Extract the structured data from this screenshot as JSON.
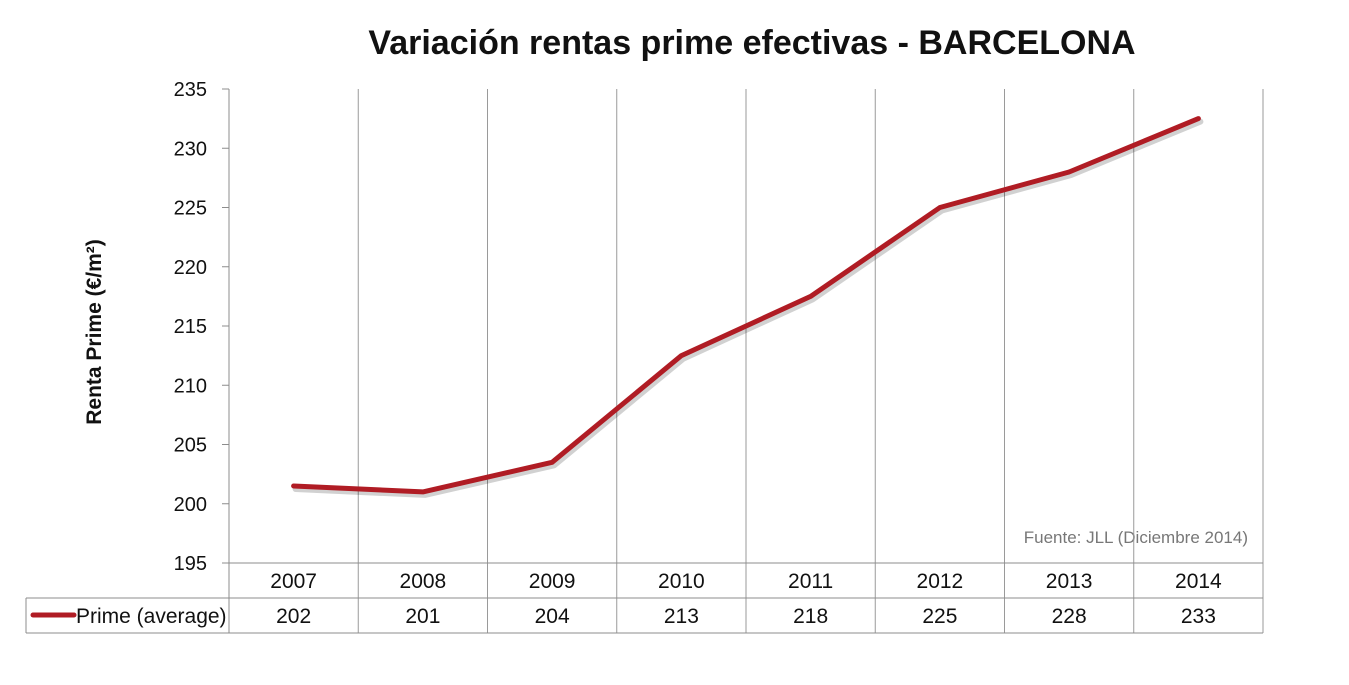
{
  "chart_data": {
    "type": "line",
    "title": "Variación rentas prime efectivas - BARCELONA",
    "ylabel": "Renta Prime (€/m²)",
    "xlabel": "",
    "ylim": [
      195,
      235
    ],
    "yticks": [
      "235",
      "230",
      "225",
      "220",
      "215",
      "210",
      "205",
      "200",
      "195"
    ],
    "categories": [
      "2007",
      "2008",
      "2009",
      "2010",
      "2011",
      "2012",
      "2013",
      "2014"
    ],
    "series": [
      {
        "name": "Prime (average)",
        "values": [
          201.5,
          201,
          203.5,
          212.5,
          217.5,
          225,
          228,
          232.5
        ],
        "table_values": [
          "202",
          "201",
          "204",
          "213",
          "218",
          "225",
          "228",
          "233"
        ],
        "color": "#b01c24"
      }
    ],
    "grid": {
      "vertical": true,
      "horizontal": false
    },
    "data_table": true,
    "annotation": "Fuente: JLL (Diciembre 2014)",
    "colors": {
      "axis": "#8c8c8c",
      "grid": "#9a9a9a",
      "line": "#b01c24"
    }
  }
}
